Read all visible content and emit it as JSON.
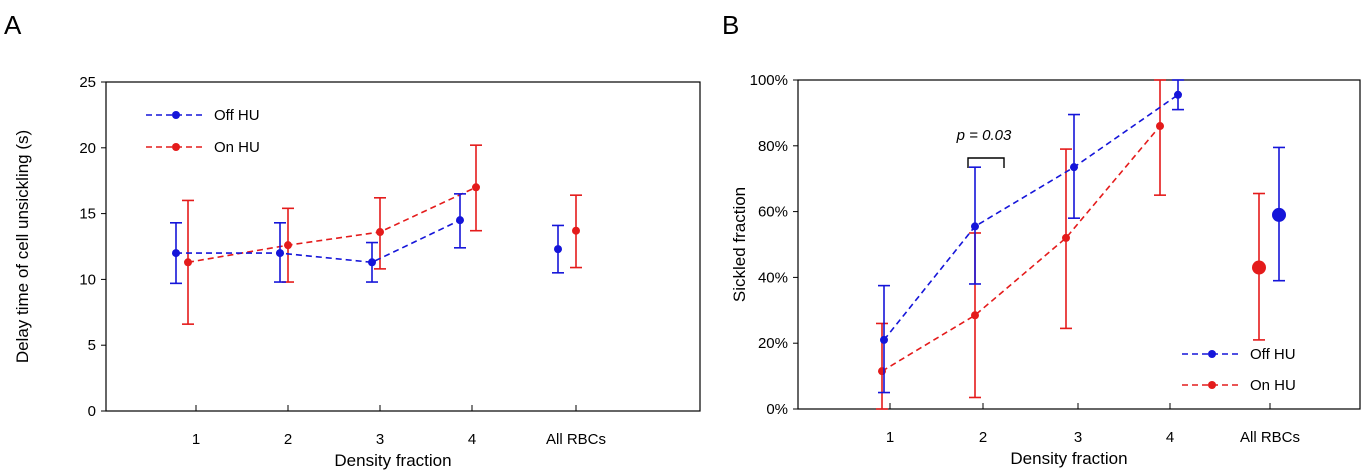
{
  "panels": [
    {
      "letter": "A"
    },
    {
      "letter": "B"
    }
  ],
  "chart_data": [
    {
      "type": "line",
      "panel": "A",
      "xlabel": "Density fraction",
      "ylabel": "Delay time of cell unsickling (s)",
      "categories": [
        "1",
        "2",
        "3",
        "4",
        "All RBCs"
      ],
      "ylim": [
        0,
        25
      ],
      "yticks": [
        0,
        5,
        10,
        15,
        20,
        25
      ],
      "ytick_labels": [
        "0",
        "5",
        "10",
        "15",
        "20",
        "25"
      ],
      "grid": false,
      "legend_position": "top-left",
      "series": [
        {
          "name": "Off HU",
          "color": "#1515d9",
          "values": [
            12.0,
            12.0,
            11.3,
            14.5,
            12.3
          ],
          "err_low": [
            9.7,
            9.8,
            9.8,
            12.4,
            10.5
          ],
          "err_high": [
            14.3,
            14.3,
            12.8,
            16.5,
            14.1
          ]
        },
        {
          "name": "On HU",
          "color": "#e41b1b",
          "values": [
            11.3,
            12.6,
            13.6,
            17.0,
            13.7
          ],
          "err_low": [
            6.6,
            9.8,
            10.8,
            13.7,
            10.9
          ],
          "err_high": [
            16.0,
            15.4,
            16.2,
            20.2,
            16.4
          ]
        }
      ]
    },
    {
      "type": "line",
      "panel": "B",
      "xlabel": "Density fraction",
      "ylabel": "Sickled  fraction",
      "categories": [
        "1",
        "2",
        "3",
        "4",
        "All RBCs"
      ],
      "ylim": [
        0,
        100
      ],
      "yticks": [
        0,
        20,
        40,
        60,
        80,
        100
      ],
      "ytick_labels": [
        "0%",
        "20%",
        "40%",
        "60%",
        "80%",
        "100%"
      ],
      "grid": false,
      "legend_position": "bottom-right",
      "annotation": "p = 0.03",
      "series": [
        {
          "name": "Off HU",
          "color": "#1515d9",
          "values": [
            21,
            55.5,
            73.5,
            95.5,
            59
          ],
          "err_low": [
            5,
            38,
            58,
            91,
            39
          ],
          "err_high": [
            37.5,
            73.5,
            89.5,
            100,
            79.5
          ]
        },
        {
          "name": "On HU",
          "color": "#e41b1b",
          "values": [
            11.5,
            28.5,
            52,
            86,
            43
          ],
          "err_low": [
            0,
            3.5,
            24.5,
            65,
            21
          ],
          "err_high": [
            26,
            53.5,
            79,
            100,
            65.5
          ]
        }
      ]
    }
  ]
}
